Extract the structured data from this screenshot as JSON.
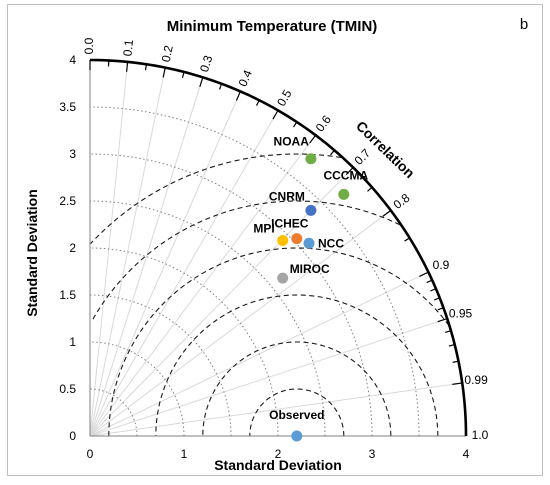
{
  "chart_data": {
    "type": "taylor-diagram",
    "title": "Minimum Temperature (TMIN)",
    "panel_label": "b",
    "xlabel": "Standard Deviation",
    "ylabel": "Standard Deviation",
    "arc_label": "Correlation",
    "xlim": [
      0,
      4
    ],
    "ylim": [
      0,
      4
    ],
    "std_ticks": [
      "0",
      "1",
      "2",
      "3",
      "4"
    ],
    "std_ticks_y": [
      "0",
      "0.5",
      "1",
      "1.5",
      "2",
      "2.5",
      "3",
      "3.5",
      "4"
    ],
    "correlation_ticks": [
      "0.0",
      "0.1",
      "0.2",
      "0.3",
      "0.4",
      "0.5",
      "0.6",
      "0.7",
      "0.8",
      "0.9",
      "0.95",
      "0.99",
      "1.0"
    ],
    "observed_std": 2.2,
    "points": [
      {
        "label": "NOAA",
        "x": 2.35,
        "y": 2.95,
        "color": "#70ad47"
      },
      {
        "label": "CCCMA",
        "x": 2.7,
        "y": 2.57,
        "color": "#70ad47"
      },
      {
        "label": "CNRM",
        "x": 2.35,
        "y": 2.4,
        "color": "#4472c4"
      },
      {
        "label": "ICHEC",
        "x": 2.2,
        "y": 2.1,
        "color": "#ed7d31"
      },
      {
        "label": "MPI",
        "x": 2.05,
        "y": 2.08,
        "color": "#ffc000"
      },
      {
        "label": "NCC",
        "x": 2.33,
        "y": 2.05,
        "color": "#5b9bd5"
      },
      {
        "label": "MIROC",
        "x": 2.05,
        "y": 1.68,
        "color": "#a5a5a5"
      },
      {
        "label": "Observed",
        "x": 2.2,
        "y": 0.0,
        "color": "#5b9bd5"
      }
    ]
  }
}
